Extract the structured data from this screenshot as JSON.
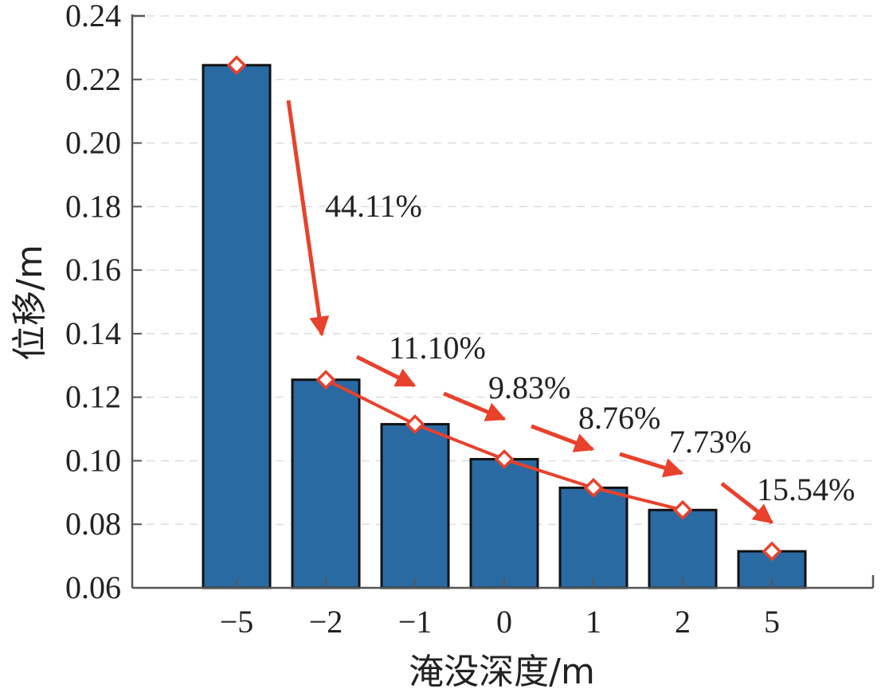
{
  "chart_data": {
    "type": "bar",
    "categories": [
      "−5",
      "−2",
      "−1",
      "0",
      "1",
      "2",
      "5"
    ],
    "values": [
      0.2245,
      0.1255,
      0.1115,
      0.1005,
      0.0915,
      0.0845,
      0.0715
    ],
    "line_overlay": true,
    "xlabel": "淹没深度/m",
    "ylabel": "位移/m",
    "ylim": [
      0.06,
      0.24
    ],
    "yticks": [
      "0.06",
      "0.08",
      "0.10",
      "0.12",
      "0.14",
      "0.16",
      "0.18",
      "0.20",
      "0.22",
      "0.24"
    ],
    "annotations": [
      "44.11%",
      "11.10%",
      "9.83%",
      "8.76%",
      "7.73%",
      "15.54%"
    ],
    "grid": "dashed horizontal",
    "colors": {
      "bar": "#2a6aa3",
      "bar_edge": "#111111",
      "line": "#e8412c",
      "marker": "#e8412c",
      "arrow": "#e8412c"
    }
  }
}
